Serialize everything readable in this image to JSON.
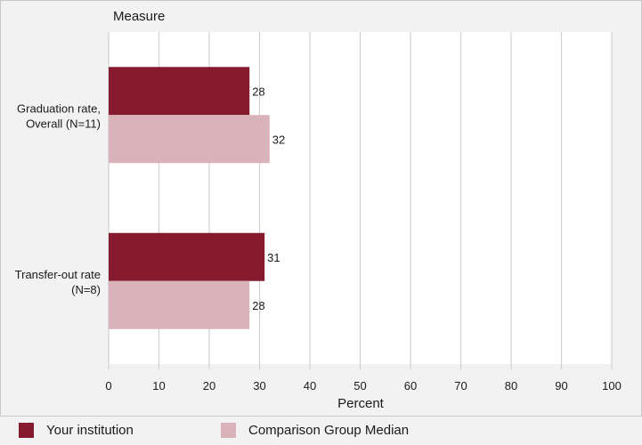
{
  "chart_data": {
    "type": "bar",
    "orientation": "horizontal",
    "category_axis_title": "Measure",
    "categories": [
      "Graduation rate, Overall (N=11)",
      "Transfer-out rate (N=8)"
    ],
    "category_label_lines": [
      [
        "Graduation rate,",
        "Overall (N=11)"
      ],
      [
        "Transfer-out rate",
        "(N=8)"
      ]
    ],
    "series": [
      {
        "name": "Your institution",
        "values": [
          28,
          31
        ],
        "color": "#861a2e"
      },
      {
        "name": "Comparison Group Median",
        "values": [
          32,
          28
        ],
        "color": "#d9b3b9"
      }
    ],
    "xlabel": "Percent",
    "xlim": [
      0,
      100
    ],
    "xticks": [
      0,
      10,
      20,
      30,
      40,
      50,
      60,
      70,
      80,
      90,
      100
    ],
    "grid": true,
    "legend_position": "bottom"
  },
  "colors": {
    "background": "#f2f2f2",
    "plot_background": "#ffffff",
    "gridline": "#d0d0d0",
    "border": "#c9c9c9"
  }
}
